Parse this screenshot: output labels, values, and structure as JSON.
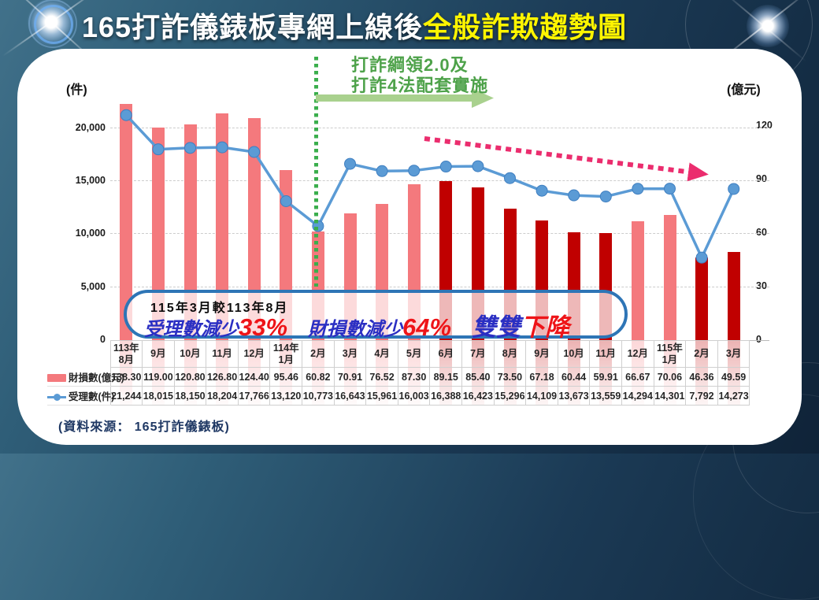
{
  "title": {
    "prefix": "165打詐儀錶板專網上線後",
    "highlight": "全般詐欺趨勢圖"
  },
  "policy_note": {
    "line1": "打詐綱領2.0及",
    "line2": "打詐4法配套實施"
  },
  "summary": {
    "line1": "115年3月較113年8月",
    "segments": [
      {
        "text": "受理數減少",
        "color": "blue",
        "size": "md",
        "gap": false
      },
      {
        "text": "33%",
        "color": "red",
        "size": "lg",
        "gap": false
      },
      {
        "text": "財損數減少",
        "color": "blue",
        "size": "md",
        "gap": true
      },
      {
        "text": "64%",
        "color": "red",
        "size": "lg",
        "gap": false
      },
      {
        "text": "雙雙",
        "color": "blue",
        "size": "lg",
        "gap": true
      },
      {
        "text": "下降",
        "color": "red",
        "size": "lg",
        "gap": false
      }
    ]
  },
  "legend": {
    "bar": "財損數(億元)",
    "line": "受理數(件)"
  },
  "source": "(資料來源： 165打詐儀錶板)",
  "colors": {
    "bar_pink": "#F4797D",
    "bar_red": "#C00000",
    "line_blue": "#5B9BD5",
    "green": "#4EA24A",
    "green_arrow": "#A9D18E",
    "green_dots": "#3AAE4C",
    "pink_arrow": "#EB2D6E",
    "oval_blue": "#2E75B6",
    "summary_blue": "#2B2FC3",
    "summary_red": "#EE1418",
    "navy": "#1F3864",
    "title_yellow": "#FFF500"
  },
  "chart_data": {
    "type": "bar+line",
    "title": "165打詐儀錶板專網上線後全般詐欺趨勢圖",
    "categories": [
      "113年\n8月",
      "9月",
      "10月",
      "11月",
      "12月",
      "114年\n1月",
      "2月",
      "3月",
      "4月",
      "5月",
      "6月",
      "7月",
      "8月",
      "9月",
      "10月",
      "11月",
      "12月",
      "115年\n1月",
      "2月",
      "3月"
    ],
    "series": [
      {
        "name": "財損數(億元)",
        "type": "bar",
        "axis": "right",
        "values": [
          138.3,
          119.0,
          120.8,
          126.8,
          124.4,
          95.46,
          60.82,
          70.91,
          76.52,
          87.3,
          89.15,
          85.4,
          73.5,
          67.18,
          60.44,
          59.91,
          66.67,
          70.06,
          46.36,
          49.59
        ],
        "bar_colors": [
          "pink",
          "pink",
          "pink",
          "pink",
          "pink",
          "pink",
          "pink",
          "pink",
          "pink",
          "pink",
          "red",
          "red",
          "red",
          "red",
          "red",
          "red",
          "pink",
          "pink",
          "red",
          "red"
        ]
      },
      {
        "name": "受理數(件)",
        "type": "line",
        "axis": "left",
        "values": [
          21244,
          18015,
          18150,
          18204,
          17766,
          13120,
          10773,
          16643,
          15961,
          16003,
          16388,
          16423,
          15296,
          14109,
          13673,
          13559,
          14294,
          14301,
          7792,
          14273
        ]
      }
    ],
    "left_axis": {
      "unit": "(件)",
      "ticks": [
        0,
        5000,
        10000,
        15000,
        20000
      ],
      "plot_max": 22300
    },
    "right_axis": {
      "unit": "(億元)",
      "ticks": [
        0,
        30,
        60,
        90,
        120
      ],
      "plot_max": 132.3
    },
    "grid": "horizontal-dashed",
    "legend_position": "table-left"
  }
}
